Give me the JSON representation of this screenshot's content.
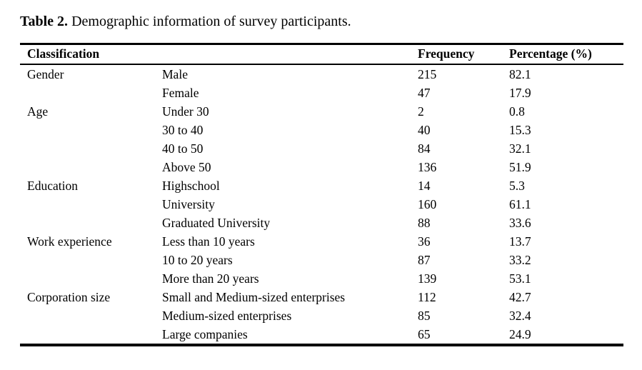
{
  "caption": {
    "label": "Table 2.",
    "text": "Demographic information of survey participants."
  },
  "table": {
    "headers": [
      "Classification",
      "Frequency",
      "Percentage (%)"
    ],
    "rows": [
      {
        "group": "Gender",
        "item": "Male",
        "frequency": "215",
        "percentage": "82.1"
      },
      {
        "group": "",
        "item": "Female",
        "frequency": "47",
        "percentage": "17.9"
      },
      {
        "group": "Age",
        "item": "Under 30",
        "frequency": "2",
        "percentage": "0.8"
      },
      {
        "group": "",
        "item": "30 to 40",
        "frequency": "40",
        "percentage": "15.3"
      },
      {
        "group": "",
        "item": "40 to 50",
        "frequency": "84",
        "percentage": "32.1"
      },
      {
        "group": "",
        "item": "Above 50",
        "frequency": "136",
        "percentage": "51.9"
      },
      {
        "group": "Education",
        "item": "Highschool",
        "frequency": "14",
        "percentage": "5.3"
      },
      {
        "group": "",
        "item": "University",
        "frequency": "160",
        "percentage": "61.1"
      },
      {
        "group": "",
        "item": "Graduated University",
        "frequency": "88",
        "percentage": "33.6"
      },
      {
        "group": "Work experience",
        "item": "Less than 10 years",
        "frequency": "36",
        "percentage": "13.7"
      },
      {
        "group": "",
        "item": "10 to 20 years",
        "frequency": "87",
        "percentage": "33.2"
      },
      {
        "group": "",
        "item": "More than 20 years",
        "frequency": "139",
        "percentage": "53.1"
      },
      {
        "group": "Corporation size",
        "item": "Small and Medium-sized enterprises",
        "frequency": "112",
        "percentage": "42.7"
      },
      {
        "group": "",
        "item": "Medium-sized enterprises",
        "frequency": "85",
        "percentage": "32.4"
      },
      {
        "group": "",
        "item": "Large companies",
        "frequency": "65",
        "percentage": "24.9"
      }
    ]
  },
  "colors": {
    "text": "#000000",
    "background": "#ffffff",
    "rule": "#000000"
  }
}
